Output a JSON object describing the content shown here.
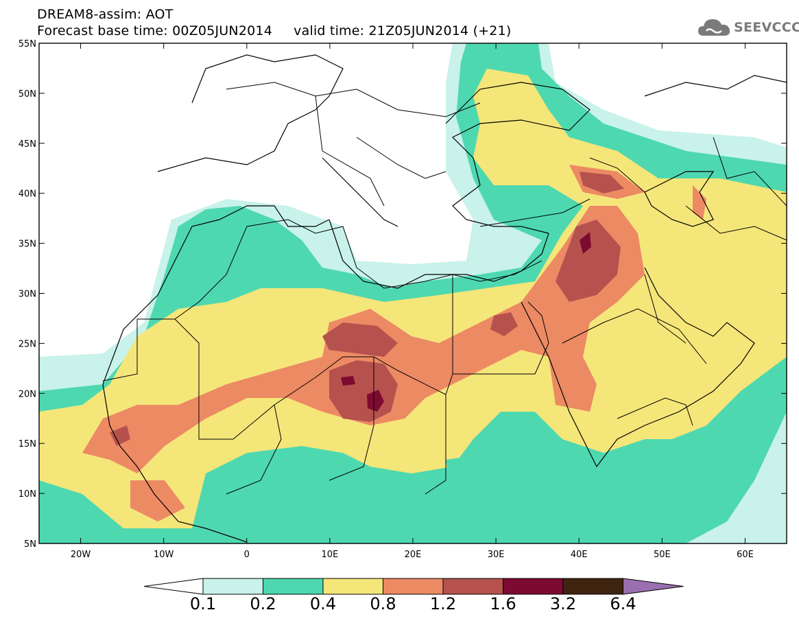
{
  "header": {
    "title_line1": "DREAM8-assim: AOT",
    "title_line2": "Forecast base time: 00Z05JUN2014     valid time: 21Z05JUN2014 (+21)"
  },
  "logo": {
    "text": "SEEVCCC",
    "icon": "cloud-icon"
  },
  "map": {
    "lon_range": [
      -25,
      65
    ],
    "lat_range": [
      5,
      55
    ],
    "lat_labels": [
      "55N",
      "50N",
      "45N",
      "40N",
      "35N",
      "30N",
      "25N",
      "20N",
      "15N",
      "10N",
      "5N"
    ],
    "lon_labels": [
      "20W",
      "10W",
      "0",
      "10E",
      "20E",
      "30E",
      "40E",
      "50E",
      "60E"
    ]
  },
  "colorbar": {
    "labels": [
      "0.1",
      "0.2",
      "0.4",
      "0.8",
      "1.2",
      "1.6",
      "3.2",
      "6.4"
    ],
    "colors": [
      "#ffffff",
      "#c8f2ea",
      "#4ed8b0",
      "#f5e67a",
      "#ec8a64",
      "#b5524e",
      "#7d0a30",
      "#3f2410",
      "#9a6fb0"
    ]
  }
}
